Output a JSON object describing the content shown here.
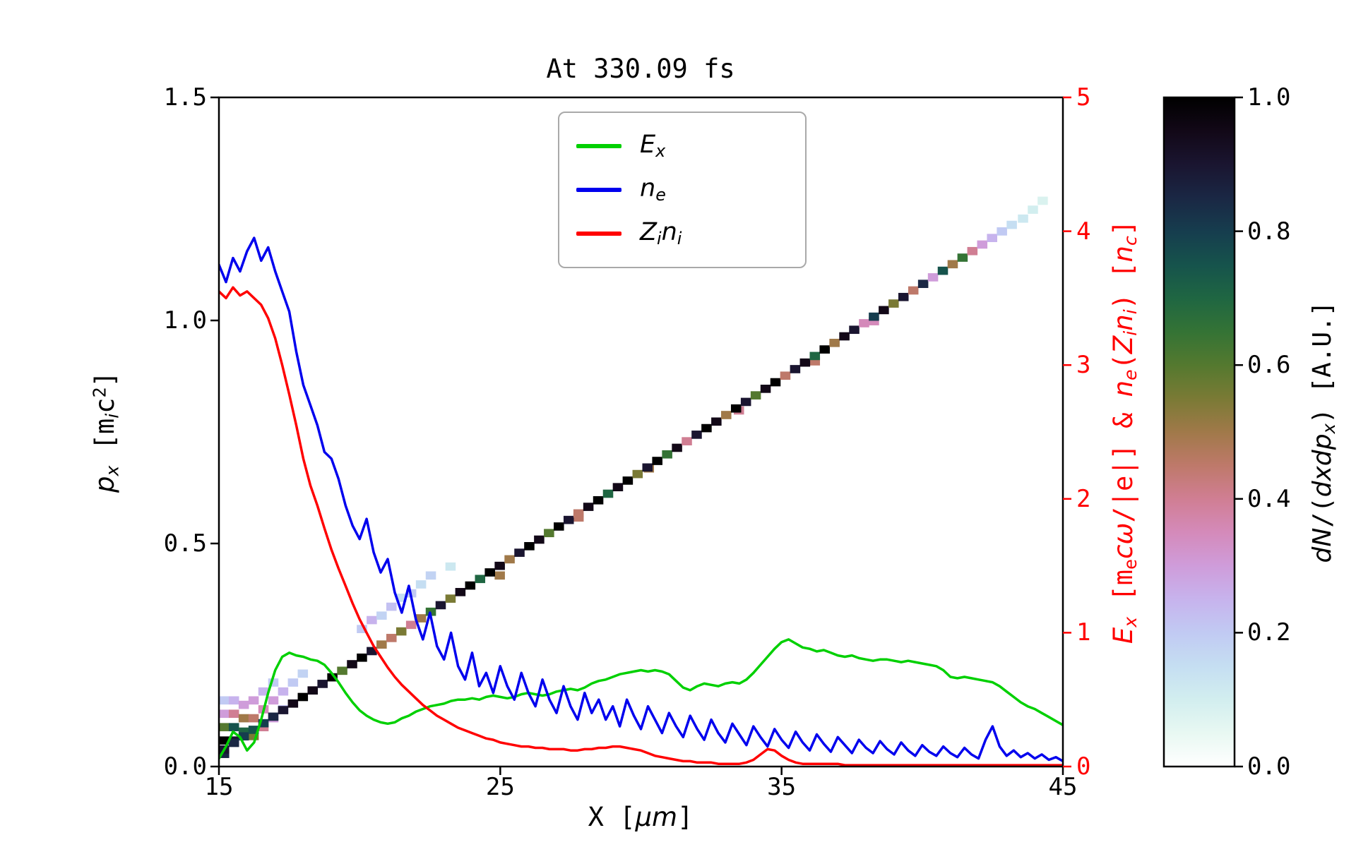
{
  "title": "At 330.09 fs",
  "axes": {
    "x": {
      "label_parts": [
        {
          "t": "X ["
        },
        {
          "t": "μm",
          "i": 1
        },
        {
          "t": "]"
        }
      ],
      "ticks": [
        "15",
        "25",
        "35",
        "45"
      ],
      "lim": [
        15,
        45
      ]
    },
    "y_left": {
      "label_parts": [
        {
          "t": "p",
          "i": 1
        },
        {
          "t": "x",
          "i": 1,
          "sub": 1
        },
        {
          "t": " [m"
        },
        {
          "t": "i",
          "i": 1,
          "sub": 1
        },
        {
          "t": "c"
        },
        {
          "t": "2",
          "sup": 1
        },
        {
          "t": "]"
        }
      ],
      "ticks": [
        "0.0",
        "0.5",
        "1.0",
        "1.5"
      ],
      "lim": [
        0,
        1.5
      ]
    },
    "y_right": {
      "label_parts": [
        {
          "t": "E",
          "i": 1
        },
        {
          "t": "x",
          "i": 1,
          "sub": 1
        },
        {
          "t": " [m"
        },
        {
          "t": "e",
          "sub": 1
        },
        {
          "t": "c",
          "i": 1
        },
        {
          "t": "ω",
          "i": 1
        },
        {
          "t": "/|e|] & "
        },
        {
          "t": "n",
          "i": 1
        },
        {
          "t": "e",
          "i": 1,
          "sub": 1
        },
        {
          "t": "(",
          "i": 0
        },
        {
          "t": "Z",
          "i": 1
        },
        {
          "t": "i",
          "i": 1,
          "sub": 1
        },
        {
          "t": "n",
          "i": 1
        },
        {
          "t": "i",
          "i": 1,
          "sub": 1
        },
        {
          "t": ") ["
        },
        {
          "t": "n",
          "i": 1
        },
        {
          "t": "c",
          "i": 1,
          "sub": 1
        },
        {
          "t": "]"
        }
      ],
      "ticks": [
        "0",
        "1",
        "2",
        "3",
        "4",
        "5"
      ],
      "lim": [
        0,
        5
      ],
      "color": "#ff0000"
    },
    "colorbar": {
      "label_parts": [
        {
          "t": "dN",
          "i": 1
        },
        {
          "t": "/("
        },
        {
          "t": "dxdp",
          "i": 1
        },
        {
          "t": "x",
          "i": 1,
          "sub": 1
        },
        {
          "t": ")"
        },
        {
          "t": " [A.U.]"
        }
      ],
      "ticks": [
        "0.0",
        "0.2",
        "0.4",
        "0.6",
        "0.8",
        "1.0"
      ],
      "lim": [
        0,
        1
      ],
      "colormap": "cubehelix_r"
    }
  },
  "legend": {
    "items": [
      {
        "name": "Ex",
        "color": "#00d000",
        "label_parts": [
          {
            "t": "E",
            "i": 1
          },
          {
            "t": "x",
            "i": 1,
            "sub": 1
          }
        ]
      },
      {
        "name": "ne",
        "color": "#0000ee",
        "label_parts": [
          {
            "t": "n",
            "i": 1
          },
          {
            "t": "e",
            "i": 1,
            "sub": 1
          }
        ]
      },
      {
        "name": "Zini",
        "color": "#ff0000",
        "label_parts": [
          {
            "t": "Z",
            "i": 1
          },
          {
            "t": "i",
            "i": 1,
            "sub": 1
          },
          {
            "t": "n",
            "i": 1
          },
          {
            "t": "i",
            "i": 1,
            "sub": 1
          }
        ]
      }
    ]
  },
  "chart_data": {
    "type": "mixed",
    "title": "At 330.09 fs",
    "xlabel": "X [um]",
    "ylabel_left": "p_x [m_i c^2]",
    "ylabel_right": "E_x [m_e c w/|e|] & n_e(Z_i n_i) [n_c]",
    "xlim": [
      15,
      45
    ],
    "ylim_left": [
      0,
      1.5
    ],
    "ylim_right": [
      0,
      5
    ],
    "x": {
      "start": 15,
      "step": 0.25
    },
    "series": [
      {
        "name": "Ex",
        "axis": "right",
        "color": "#00d000",
        "values": [
          0.06,
          0.15,
          0.26,
          0.22,
          0.12,
          0.18,
          0.35,
          0.55,
          0.72,
          0.82,
          0.85,
          0.83,
          0.82,
          0.8,
          0.79,
          0.76,
          0.7,
          0.63,
          0.55,
          0.48,
          0.42,
          0.38,
          0.35,
          0.33,
          0.32,
          0.33,
          0.36,
          0.38,
          0.41,
          0.43,
          0.45,
          0.46,
          0.47,
          0.49,
          0.5,
          0.5,
          0.51,
          0.5,
          0.52,
          0.53,
          0.52,
          0.51,
          0.52,
          0.54,
          0.55,
          0.54,
          0.53,
          0.54,
          0.56,
          0.57,
          0.58,
          0.57,
          0.59,
          0.62,
          0.64,
          0.65,
          0.67,
          0.69,
          0.7,
          0.71,
          0.72,
          0.71,
          0.72,
          0.71,
          0.69,
          0.64,
          0.59,
          0.57,
          0.6,
          0.62,
          0.61,
          0.6,
          0.62,
          0.63,
          0.62,
          0.65,
          0.7,
          0.76,
          0.82,
          0.88,
          0.93,
          0.95,
          0.92,
          0.89,
          0.88,
          0.86,
          0.87,
          0.85,
          0.83,
          0.82,
          0.83,
          0.81,
          0.8,
          0.79,
          0.8,
          0.8,
          0.79,
          0.78,
          0.79,
          0.78,
          0.77,
          0.76,
          0.75,
          0.72,
          0.67,
          0.66,
          0.67,
          0.66,
          0.65,
          0.64,
          0.63,
          0.6,
          0.56,
          0.52,
          0.48,
          0.45,
          0.43,
          0.4,
          0.37,
          0.34,
          0.31
        ]
      },
      {
        "name": "ne",
        "axis": "right",
        "color": "#0000ee",
        "values": [
          3.75,
          3.62,
          3.8,
          3.7,
          3.85,
          3.95,
          3.78,
          3.88,
          3.7,
          3.55,
          3.4,
          3.1,
          2.85,
          2.7,
          2.55,
          2.35,
          2.3,
          2.15,
          1.95,
          1.8,
          1.7,
          1.85,
          1.6,
          1.45,
          1.55,
          1.3,
          1.15,
          1.35,
          1.1,
          0.95,
          1.15,
          0.9,
          0.8,
          1.0,
          0.75,
          0.65,
          0.85,
          0.6,
          0.7,
          0.55,
          0.75,
          0.6,
          0.5,
          0.7,
          0.55,
          0.45,
          0.65,
          0.5,
          0.4,
          0.6,
          0.45,
          0.35,
          0.55,
          0.4,
          0.5,
          0.35,
          0.45,
          0.3,
          0.5,
          0.38,
          0.28,
          0.45,
          0.35,
          0.25,
          0.4,
          0.3,
          0.22,
          0.38,
          0.28,
          0.2,
          0.35,
          0.25,
          0.18,
          0.32,
          0.24,
          0.16,
          0.3,
          0.22,
          0.15,
          0.28,
          0.2,
          0.14,
          0.26,
          0.18,
          0.12,
          0.24,
          0.17,
          0.11,
          0.22,
          0.16,
          0.1,
          0.2,
          0.14,
          0.1,
          0.19,
          0.13,
          0.09,
          0.18,
          0.12,
          0.08,
          0.16,
          0.11,
          0.08,
          0.15,
          0.1,
          0.07,
          0.14,
          0.09,
          0.06,
          0.2,
          0.3,
          0.15,
          0.08,
          0.12,
          0.07,
          0.1,
          0.06,
          0.09,
          0.05,
          0.07,
          0.04
        ]
      },
      {
        "name": "Zini",
        "axis": "right",
        "color": "#ff0000",
        "values": [
          3.55,
          3.5,
          3.58,
          3.52,
          3.55,
          3.5,
          3.45,
          3.35,
          3.2,
          3.0,
          2.78,
          2.55,
          2.3,
          2.1,
          1.95,
          1.78,
          1.62,
          1.48,
          1.35,
          1.22,
          1.1,
          1.0,
          0.9,
          0.82,
          0.74,
          0.67,
          0.61,
          0.56,
          0.51,
          0.46,
          0.42,
          0.38,
          0.35,
          0.32,
          0.29,
          0.27,
          0.25,
          0.23,
          0.21,
          0.2,
          0.18,
          0.17,
          0.16,
          0.15,
          0.15,
          0.14,
          0.14,
          0.13,
          0.13,
          0.13,
          0.12,
          0.12,
          0.13,
          0.13,
          0.14,
          0.14,
          0.15,
          0.15,
          0.14,
          0.13,
          0.12,
          0.1,
          0.08,
          0.07,
          0.06,
          0.05,
          0.04,
          0.04,
          0.03,
          0.03,
          0.03,
          0.02,
          0.02,
          0.02,
          0.02,
          0.03,
          0.05,
          0.09,
          0.13,
          0.12,
          0.08,
          0.05,
          0.03,
          0.02,
          0.02,
          0.02,
          0.02,
          0.02,
          0.02,
          0.01,
          0.01,
          0.01,
          0.01,
          0.01,
          0.01,
          0.01,
          0.01,
          0.01,
          0.01,
          0.01,
          0.01,
          0.01,
          0.01,
          0.01,
          0.01,
          0.01,
          0.01,
          0.01,
          0.01,
          0.01,
          0.01,
          0.01,
          0.01,
          0.01,
          0.01,
          0.01,
          0.01,
          0.01,
          0.01,
          0.01,
          0.01
        ]
      }
    ],
    "phase_space": {
      "axis": "left",
      "colormap": "cubehelix_r",
      "value_range": [
        0,
        1
      ],
      "bin": {
        "dx": 0.35,
        "dp": 0.0175
      },
      "band": {
        "x0": 15.0,
        "p0": 0.03,
        "slope": 0.042,
        "intensities": [
          0.9,
          0.85,
          0.8,
          0.75,
          0.8,
          0.85,
          0.9,
          0.95,
          1,
          0.95,
          0.9,
          1,
          0.6,
          0.95,
          1,
          0.9,
          0.5,
          0.45,
          0.55,
          0.4,
          0.5,
          0.65,
          0.9,
          0.55,
          0.95,
          1,
          0.7,
          1,
          0.95,
          0.5,
          0.9,
          1,
          0.95,
          0.6,
          1,
          0.9,
          0.45,
          0.95,
          1,
          0.7,
          0.95,
          1,
          0.55,
          0.9,
          1,
          0.65,
          0.95,
          0.4,
          0.9,
          1,
          0.95,
          0.5,
          1,
          0.9,
          0.6,
          0.95,
          1,
          0.45,
          0.9,
          0.95,
          0.7,
          1,
          0.5,
          0.95,
          0.9,
          0.35,
          0.8,
          0.95,
          0.55,
          0.9,
          0.45,
          0.85,
          0.3,
          0.75,
          0.5,
          0.65,
          0.4,
          0.3,
          0.25,
          0.2,
          0.15
        ]
      },
      "cells": [
        [
          15.0,
          0.02,
          0.85
        ],
        [
          15.0,
          0.05,
          1.0
        ],
        [
          15.0,
          0.08,
          0.6
        ],
        [
          15.0,
          0.11,
          0.3
        ],
        [
          15.0,
          0.14,
          0.2
        ],
        [
          15.35,
          0.05,
          0.9
        ],
        [
          15.35,
          0.08,
          0.75
        ],
        [
          15.35,
          0.11,
          0.4
        ],
        [
          15.35,
          0.14,
          0.25
        ],
        [
          15.7,
          0.07,
          0.7
        ],
        [
          15.7,
          0.1,
          0.5
        ],
        [
          15.7,
          0.13,
          0.3
        ],
        [
          16.05,
          0.06,
          0.55
        ],
        [
          16.05,
          0.1,
          0.45
        ],
        [
          16.05,
          0.14,
          0.3
        ],
        [
          16.4,
          0.08,
          0.4
        ],
        [
          16.4,
          0.12,
          0.35
        ],
        [
          16.4,
          0.16,
          0.25
        ],
        [
          16.75,
          0.1,
          0.3
        ],
        [
          16.75,
          0.14,
          0.3
        ],
        [
          16.75,
          0.18,
          0.2
        ],
        [
          17.1,
          0.12,
          0.22
        ],
        [
          17.1,
          0.16,
          0.25
        ],
        [
          17.45,
          0.18,
          0.2
        ],
        [
          17.8,
          0.2,
          0.18
        ],
        [
          19.9,
          0.3,
          0.2
        ],
        [
          20.25,
          0.32,
          0.25
        ],
        [
          20.6,
          0.33,
          0.18
        ],
        [
          20.95,
          0.35,
          0.22
        ],
        [
          21.3,
          0.37,
          0.15
        ],
        [
          21.65,
          0.38,
          0.2
        ],
        [
          22.0,
          0.4,
          0.15
        ],
        [
          22.35,
          0.42,
          0.18
        ],
        [
          23.05,
          0.44,
          0.12
        ],
        [
          24.8,
          0.42,
          0.5
        ],
        [
          27.6,
          0.55,
          0.45
        ],
        [
          30.1,
          0.66,
          0.5
        ],
        [
          33.3,
          0.79,
          0.4
        ],
        [
          36.0,
          0.9,
          0.45
        ],
        [
          38.1,
          0.99,
          0.35
        ],
        [
          43.4,
          1.22,
          0.12
        ],
        [
          43.75,
          1.24,
          0.1
        ],
        [
          44.1,
          1.26,
          0.08
        ]
      ]
    }
  }
}
